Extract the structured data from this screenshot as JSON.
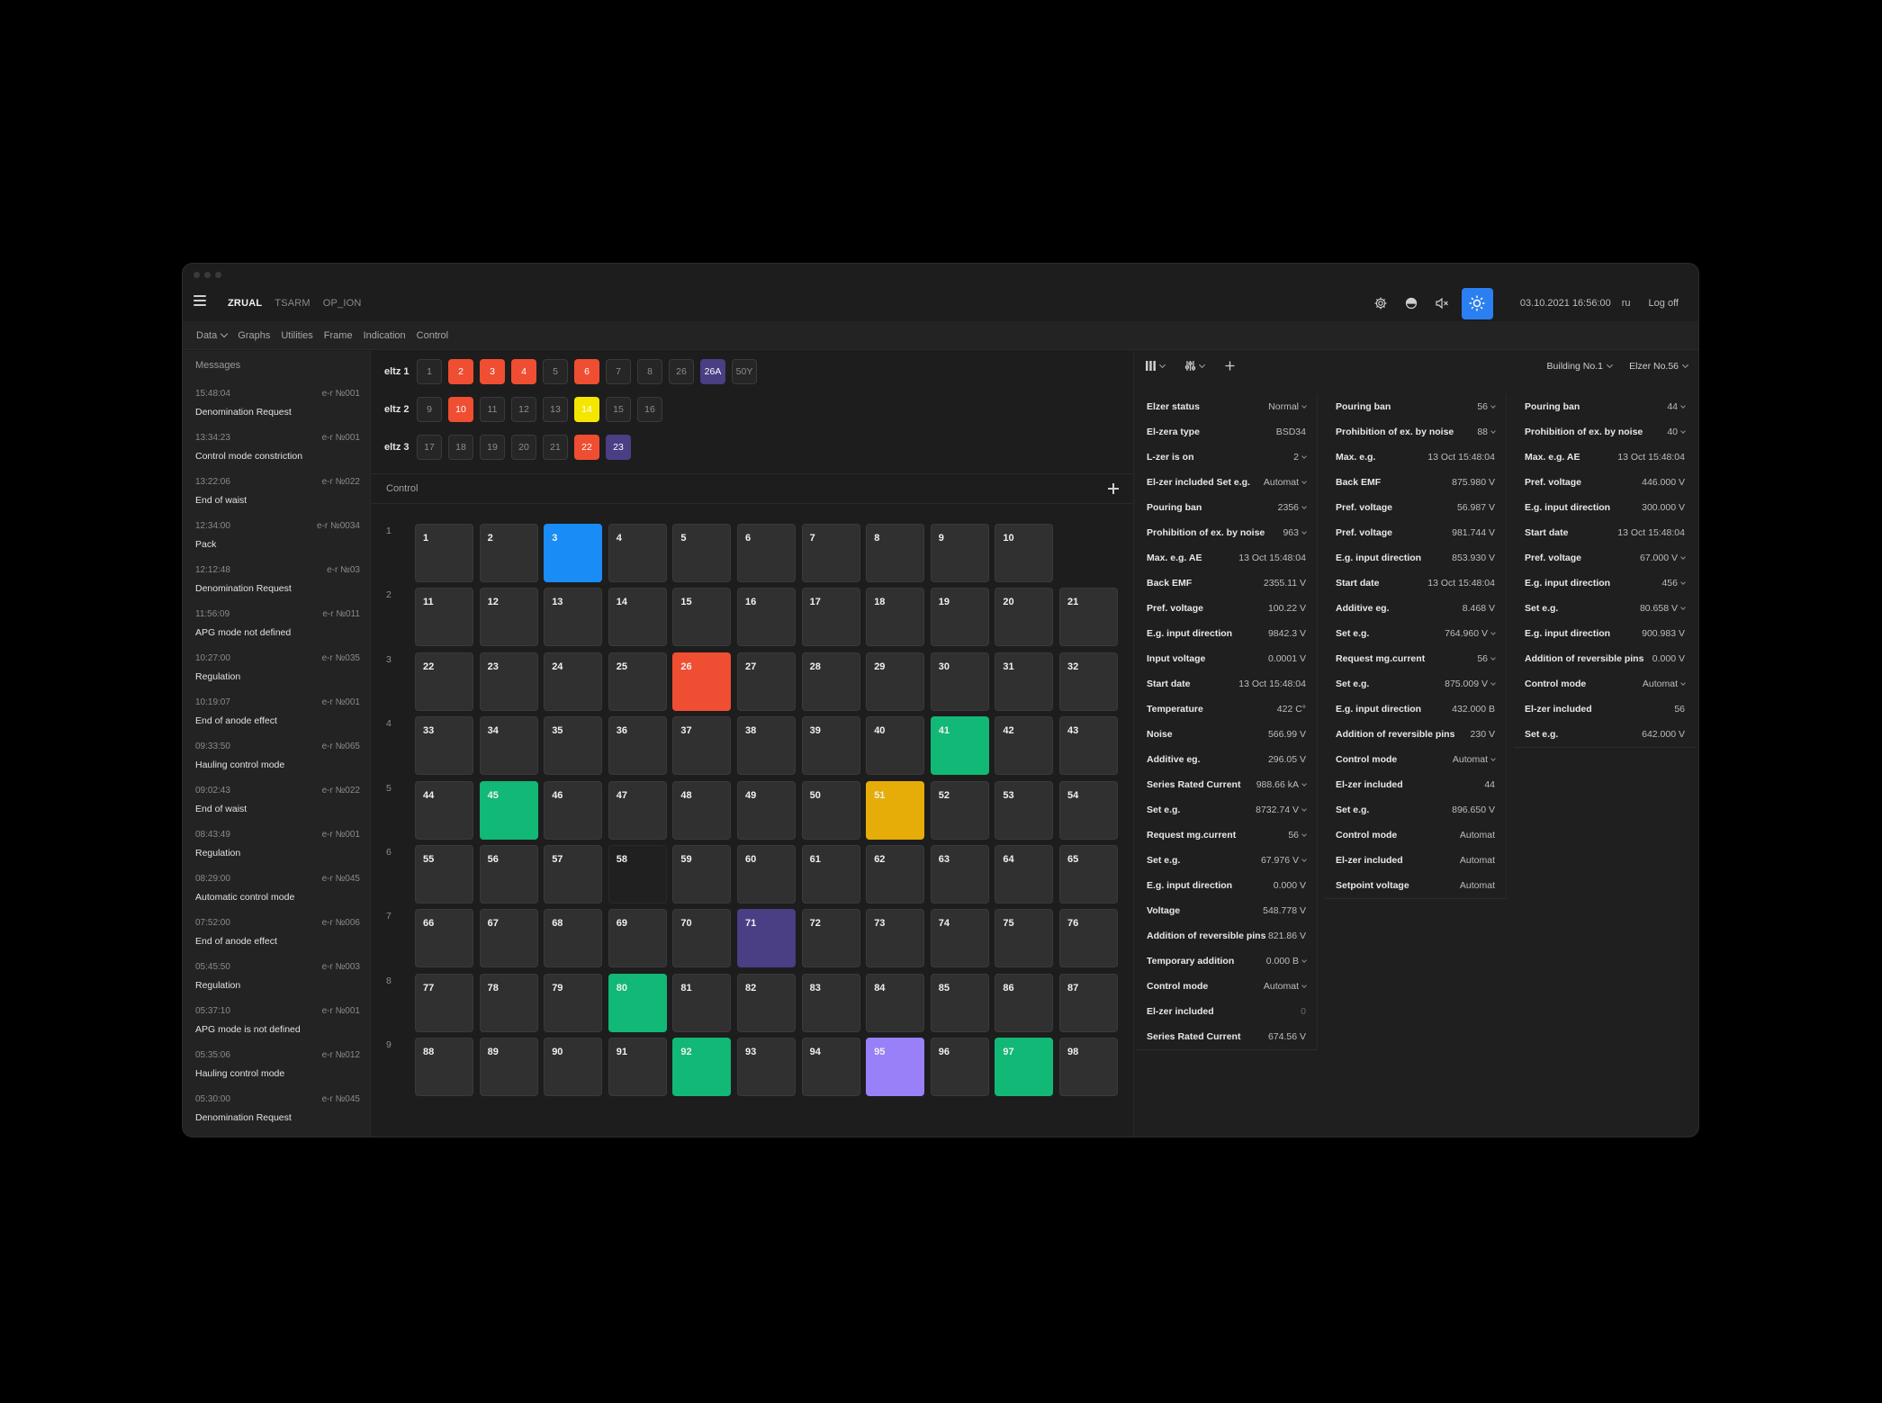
{
  "colors": {
    "red": "#ef4e32",
    "yellow": "#f5e600",
    "indigo": "#4a3e84",
    "blue": "#1a8cf5",
    "green": "#12b876",
    "amber": "#e6ad09",
    "lavender": "#9a80f8",
    "darkcell": "#202020",
    "accent": "#2b7ff0"
  },
  "header": {
    "tabs": [
      {
        "label": "ZRUAL",
        "active": true
      },
      {
        "label": "TSARM",
        "active": false
      },
      {
        "label": "OP_ION",
        "active": false
      }
    ],
    "icons": [
      "settings-gear-icon",
      "half-moon-icon",
      "sound-muted-icon",
      "sun-icon"
    ],
    "datetime": "03.10.2021 16:56:00",
    "lang": "ru",
    "logoff": "Log off"
  },
  "menu": {
    "items": [
      "Data",
      "Graphs",
      "Utilities",
      "Frame",
      "Indication",
      "Control"
    ]
  },
  "messages": {
    "title": "Messages",
    "items": [
      {
        "time": "15:48:04",
        "source": "e-r №001",
        "text": "Denomination Request"
      },
      {
        "time": "13:34:23",
        "source": "e-r №001",
        "text": "Control mode constriction"
      },
      {
        "time": "13:22:06",
        "source": "e-r №022",
        "text": "End of waist"
      },
      {
        "time": "12:34:00",
        "source": "e-r №0034",
        "text": "Pack"
      },
      {
        "time": "12:12:48",
        "source": "e-r №03",
        "text": "Denomination Request"
      },
      {
        "time": "11:56:09",
        "source": "e-r №011",
        "text": "APG mode not defined"
      },
      {
        "time": "10:27:00",
        "source": "e-r №035",
        "text": "Regulation"
      },
      {
        "time": "10:19:07",
        "source": "e-r №001",
        "text": "End of anode effect"
      },
      {
        "time": "09:33:50",
        "source": "e-r №065",
        "text": "Hauling control mode"
      },
      {
        "time": "09:02:43",
        "source": "e-r №022",
        "text": "End of waist"
      },
      {
        "time": "08:43:49",
        "source": "e-r №001",
        "text": "Regulation"
      },
      {
        "time": "08:29:00",
        "source": "e-r №045",
        "text": "Automatic control mode"
      },
      {
        "time": "07:52:00",
        "source": "e-r №006",
        "text": "End of anode effect"
      },
      {
        "time": "05:45:50",
        "source": "e-r №003",
        "text": "Regulation"
      },
      {
        "time": "05:37:10",
        "source": "e-r №001",
        "text": "APG mode is not defined"
      },
      {
        "time": "05:35:06",
        "source": "e-r №012",
        "text": "Hauling control mode"
      },
      {
        "time": "05:30:00",
        "source": "e-r №045",
        "text": "Denomination Request"
      }
    ]
  },
  "eltz": [
    {
      "label": "eltz 1",
      "chips": [
        {
          "n": "1"
        },
        {
          "n": "2",
          "c": "red"
        },
        {
          "n": "3",
          "c": "red"
        },
        {
          "n": "4",
          "c": "red"
        },
        {
          "n": "5"
        },
        {
          "n": "6",
          "c": "red"
        },
        {
          "n": "7"
        },
        {
          "n": "8"
        },
        {
          "n": "26"
        },
        {
          "n": "26A",
          "c": "indigo"
        },
        {
          "n": "50Y"
        }
      ]
    },
    {
      "label": "eltz 2",
      "chips": [
        {
          "n": "9"
        },
        {
          "n": "10",
          "c": "red"
        },
        {
          "n": "11"
        },
        {
          "n": "12"
        },
        {
          "n": "13"
        },
        {
          "n": "14",
          "c": "yellow"
        },
        {
          "n": "15"
        },
        {
          "n": "16"
        }
      ]
    },
    {
      "label": "eltz 3",
      "chips": [
        {
          "n": "17"
        },
        {
          "n": "18"
        },
        {
          "n": "19"
        },
        {
          "n": "20"
        },
        {
          "n": "21"
        },
        {
          "n": "22",
          "c": "red"
        },
        {
          "n": "23",
          "c": "indigo"
        }
      ]
    }
  ],
  "control": {
    "title": "Control",
    "rows": [
      {
        "n": "1",
        "cells": [
          "1",
          "2",
          "3",
          "4",
          "5",
          "6",
          "7",
          "8",
          "9",
          "10"
        ]
      },
      {
        "n": "2",
        "cells": [
          "11",
          "12",
          "13",
          "14",
          "15",
          "16",
          "17",
          "18",
          "19",
          "20",
          "21"
        ]
      },
      {
        "n": "3",
        "cells": [
          "22",
          "23",
          "24",
          "25",
          "26",
          "27",
          "28",
          "29",
          "30",
          "31",
          "32"
        ]
      },
      {
        "n": "4",
        "cells": [
          "33",
          "34",
          "35",
          "36",
          "37",
          "38",
          "39",
          "40",
          "41",
          "42",
          "43"
        ]
      },
      {
        "n": "5",
        "cells": [
          "44",
          "45",
          "46",
          "47",
          "48",
          "49",
          "50",
          "51",
          "52",
          "53",
          "54"
        ]
      },
      {
        "n": "6",
        "cells": [
          "55",
          "56",
          "57",
          "58",
          "59",
          "60",
          "61",
          "62",
          "63",
          "64",
          "65"
        ]
      },
      {
        "n": "7",
        "cells": [
          "66",
          "67",
          "68",
          "69",
          "70",
          "71",
          "72",
          "73",
          "74",
          "75",
          "76"
        ]
      },
      {
        "n": "8",
        "cells": [
          "77",
          "78",
          "79",
          "80",
          "81",
          "82",
          "83",
          "84",
          "85",
          "86",
          "87"
        ]
      },
      {
        "n": "9",
        "cells": [
          "88",
          "89",
          "90",
          "91",
          "92",
          "93",
          "94",
          "95",
          "96",
          "97",
          "98"
        ]
      }
    ],
    "highlights": {
      "3": "blue",
      "26": "red",
      "41": "green",
      "45": "green",
      "51": "amber",
      "58": "darkcell",
      "71": "indigo",
      "80": "green",
      "92": "green",
      "95": "lavender",
      "97": "green"
    }
  },
  "rightpanel": {
    "toolbar_icons": [
      "columns-icon",
      "sliders-icon",
      "add-icon"
    ],
    "building": "Building No.1",
    "elzer": "Elzer No.56",
    "columns": [
      [
        {
          "label": "Elzer status",
          "value": "Normal",
          "dd": true
        },
        {
          "label": "El-zera type",
          "value": "BSD34"
        },
        {
          "label": "L-zer is on",
          "value": "2",
          "dd": true
        },
        {
          "label": "El-zer included Set e.g.",
          "value": "Automat",
          "dd": true
        },
        {
          "label": "Pouring ban",
          "value": "2356",
          "dd": true
        },
        {
          "label": "Prohibition of ex. by noise",
          "value": "963",
          "dd": true
        },
        {
          "label": "Max. e.g. AE",
          "value": "13 Oct 15:48:04"
        },
        {
          "label": "Back EMF",
          "value": "2355.11 V"
        },
        {
          "label": "Pref. voltage",
          "value": "100.22 V"
        },
        {
          "label": "E.g. input direction",
          "value": "9842.3 V"
        },
        {
          "label": "Input voltage",
          "value": "0.0001 V"
        },
        {
          "label": "Start date",
          "value": "13 Oct 15:48:04"
        },
        {
          "label": "Temperature",
          "value": "422 C°"
        },
        {
          "label": "Noise",
          "value": "566.99 V"
        },
        {
          "label": "Additive eg.",
          "value": "296.05 V"
        },
        {
          "label": "Series Rated Current",
          "value": "988.66 kA",
          "dd": true
        },
        {
          "label": "Set e.g.",
          "value": "8732.74 V",
          "dd": true
        },
        {
          "label": "Request mg.current",
          "value": "56",
          "dd": true
        },
        {
          "label": "Set e.g.",
          "value": "67.976 V",
          "dd": true
        },
        {
          "label": "E.g. input direction",
          "value": "0.000 V"
        },
        {
          "label": "Voltage",
          "value": "548.778 V"
        },
        {
          "label": "Addition of reversible pins",
          "value": "821.86 V"
        },
        {
          "label": "Temporary addition",
          "value": "0.000 B",
          "dd": true
        },
        {
          "label": "Control mode",
          "value": "Automat",
          "dd": true
        },
        {
          "label": "El-zer included",
          "value": "0",
          "dim": true
        },
        {
          "label": "Series Rated Current",
          "value": "674.56 V"
        }
      ],
      [
        {
          "label": "Pouring ban",
          "value": "56",
          "dd": true
        },
        {
          "label": "Prohibition of ex. by noise",
          "value": "88",
          "dd": true
        },
        {
          "label": "Max. e.g.",
          "value": "13 Oct 15:48:04"
        },
        {
          "label": "Back EMF",
          "value": "875.980 V"
        },
        {
          "label": "Pref. voltage",
          "value": "56.987 V"
        },
        {
          "label": "Pref. voltage",
          "value": "981.744 V"
        },
        {
          "label": "E.g. input direction",
          "value": "853.930 V"
        },
        {
          "label": "Start date",
          "value": "13 Oct 15:48:04"
        },
        {
          "label": "Additive eg.",
          "value": "8.468 V"
        },
        {
          "label": "Set e.g.",
          "value": "764.960 V",
          "dd": true
        },
        {
          "label": "Request mg.current",
          "value": "56",
          "dd": true
        },
        {
          "label": "Set e.g.",
          "value": "875.009 V",
          "dd": true
        },
        {
          "label": "E.g. input direction",
          "value": "432.000 B"
        },
        {
          "label": "Addition of reversible pins",
          "value": "230 V"
        },
        {
          "label": "Control mode",
          "value": "Automat",
          "dd": true
        },
        {
          "label": "El-zer included",
          "value": "44"
        },
        {
          "label": "Set e.g.",
          "value": "896.650 V"
        },
        {
          "label": "Control mode",
          "value": "Automat"
        },
        {
          "label": "El-zer included",
          "value": "Automat"
        },
        {
          "label": "Setpoint voltage",
          "value": "Automat"
        }
      ],
      [
        {
          "label": "Pouring ban",
          "value": "44",
          "dd": true
        },
        {
          "label": "Prohibition of ex. by noise",
          "value": "40",
          "dd": true
        },
        {
          "label": "Max. e.g. AE",
          "value": "13 Oct 15:48:04"
        },
        {
          "label": "Pref. voltage",
          "value": "446.000 V"
        },
        {
          "label": "E.g. input direction",
          "value": "300.000 V"
        },
        {
          "label": "Start date",
          "value": "13 Oct 15:48:04"
        },
        {
          "label": "Pref. voltage",
          "value": "67.000 V",
          "dd": true
        },
        {
          "label": "E.g. input direction",
          "value": "456",
          "dd": true
        },
        {
          "label": "Set e.g.",
          "value": "80.658 V",
          "dd": true
        },
        {
          "label": "E.g. input direction",
          "value": "900.983 V"
        },
        {
          "label": "Addition of reversible pins",
          "value": "0.000 V"
        },
        {
          "label": "Control mode",
          "value": "Automat",
          "dd": true
        },
        {
          "label": "El-zer included",
          "value": "56"
        },
        {
          "label": "Set e.g.",
          "value": "642.000 V"
        }
      ]
    ]
  }
}
